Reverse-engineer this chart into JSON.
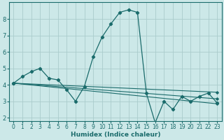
{
  "xlabel": "Humidex (Indice chaleur)",
  "background_color": "#cce8e8",
  "line_color": "#1a6b6b",
  "grid_color": "#aacccc",
  "xlim": [
    -0.5,
    23.5
  ],
  "ylim": [
    1.8,
    9.0
  ],
  "xticks": [
    0,
    1,
    2,
    3,
    4,
    5,
    6,
    7,
    8,
    9,
    10,
    11,
    12,
    13,
    14,
    15,
    16,
    17,
    18,
    19,
    20,
    21,
    22,
    23
  ],
  "yticks": [
    2,
    3,
    4,
    5,
    6,
    7,
    8
  ],
  "main_line": {
    "x": [
      0,
      1,
      2,
      3,
      4,
      5,
      6,
      7,
      8,
      9,
      10,
      11,
      12,
      13,
      14,
      15,
      16,
      17,
      18,
      19,
      20,
      21,
      22,
      23
    ],
    "y": [
      4.1,
      4.5,
      4.8,
      5.0,
      4.4,
      4.3,
      3.7,
      3.0,
      3.9,
      5.7,
      6.9,
      7.7,
      8.4,
      8.55,
      8.4,
      3.5,
      1.7,
      3.0,
      2.5,
      3.3,
      3.0,
      3.3,
      3.5,
      2.9
    ]
  },
  "trend_lines": [
    {
      "x": [
        0,
        23
      ],
      "y": [
        4.1,
        2.85
      ]
    },
    {
      "x": [
        0,
        23
      ],
      "y": [
        4.1,
        3.15
      ]
    },
    {
      "x": [
        0,
        23
      ],
      "y": [
        4.1,
        3.55
      ]
    }
  ],
  "tick_fontsize": 5.5,
  "xlabel_fontsize": 6.5,
  "ylabel_fontsize": 6.0
}
